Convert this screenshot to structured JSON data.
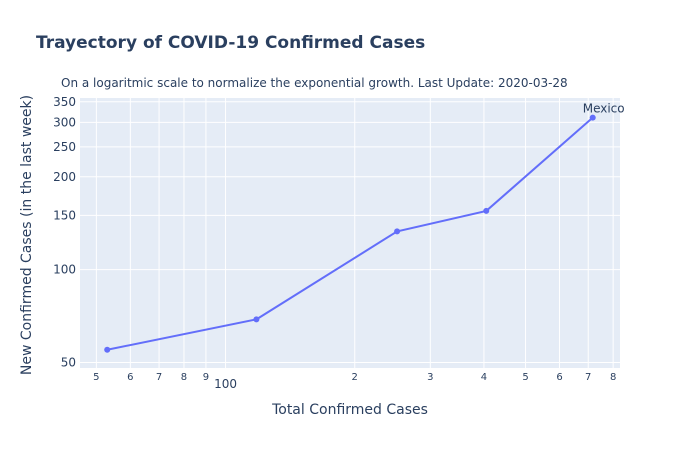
{
  "chart_data": {
    "type": "line",
    "title": "Trayectory of COVID-19 Confirmed Cases",
    "subtitle": "On a logaritmic scale to normalize the exponential growth. Last Update: 2020-03-28",
    "xlabel": "Total Confirmed Cases",
    "ylabel": "New Confirmed Cases (in the last week)",
    "x_scale": "log",
    "y_scale": "log",
    "xlim": [
      45.8,
      830
    ],
    "ylim": [
      48,
      360
    ],
    "x_ticks": [
      {
        "value": 50,
        "label": "5"
      },
      {
        "value": 60,
        "label": "6"
      },
      {
        "value": 70,
        "label": "7"
      },
      {
        "value": 80,
        "label": "8"
      },
      {
        "value": 90,
        "label": "9"
      },
      {
        "value": 100,
        "label": "100"
      },
      {
        "value": 200,
        "label": "2"
      },
      {
        "value": 300,
        "label": "3"
      },
      {
        "value": 400,
        "label": "4"
      },
      {
        "value": 500,
        "label": "5"
      },
      {
        "value": 600,
        "label": "6"
      },
      {
        "value": 700,
        "label": "7"
      },
      {
        "value": 800,
        "label": "8"
      }
    ],
    "y_ticks": [
      {
        "value": 50,
        "label": "50"
      },
      {
        "value": 100,
        "label": "100"
      },
      {
        "value": 150,
        "label": "150"
      },
      {
        "value": 200,
        "label": "200"
      },
      {
        "value": 250,
        "label": "250"
      },
      {
        "value": 300,
        "label": "300"
      },
      {
        "value": 350,
        "label": "350"
      }
    ],
    "grid": true,
    "series": [
      {
        "x": [
          53,
          118,
          251,
          405,
          717
        ],
        "y": [
          55,
          69,
          133,
          155,
          311
        ],
        "color": "#636efa",
        "end_label": "Mexico"
      }
    ]
  }
}
